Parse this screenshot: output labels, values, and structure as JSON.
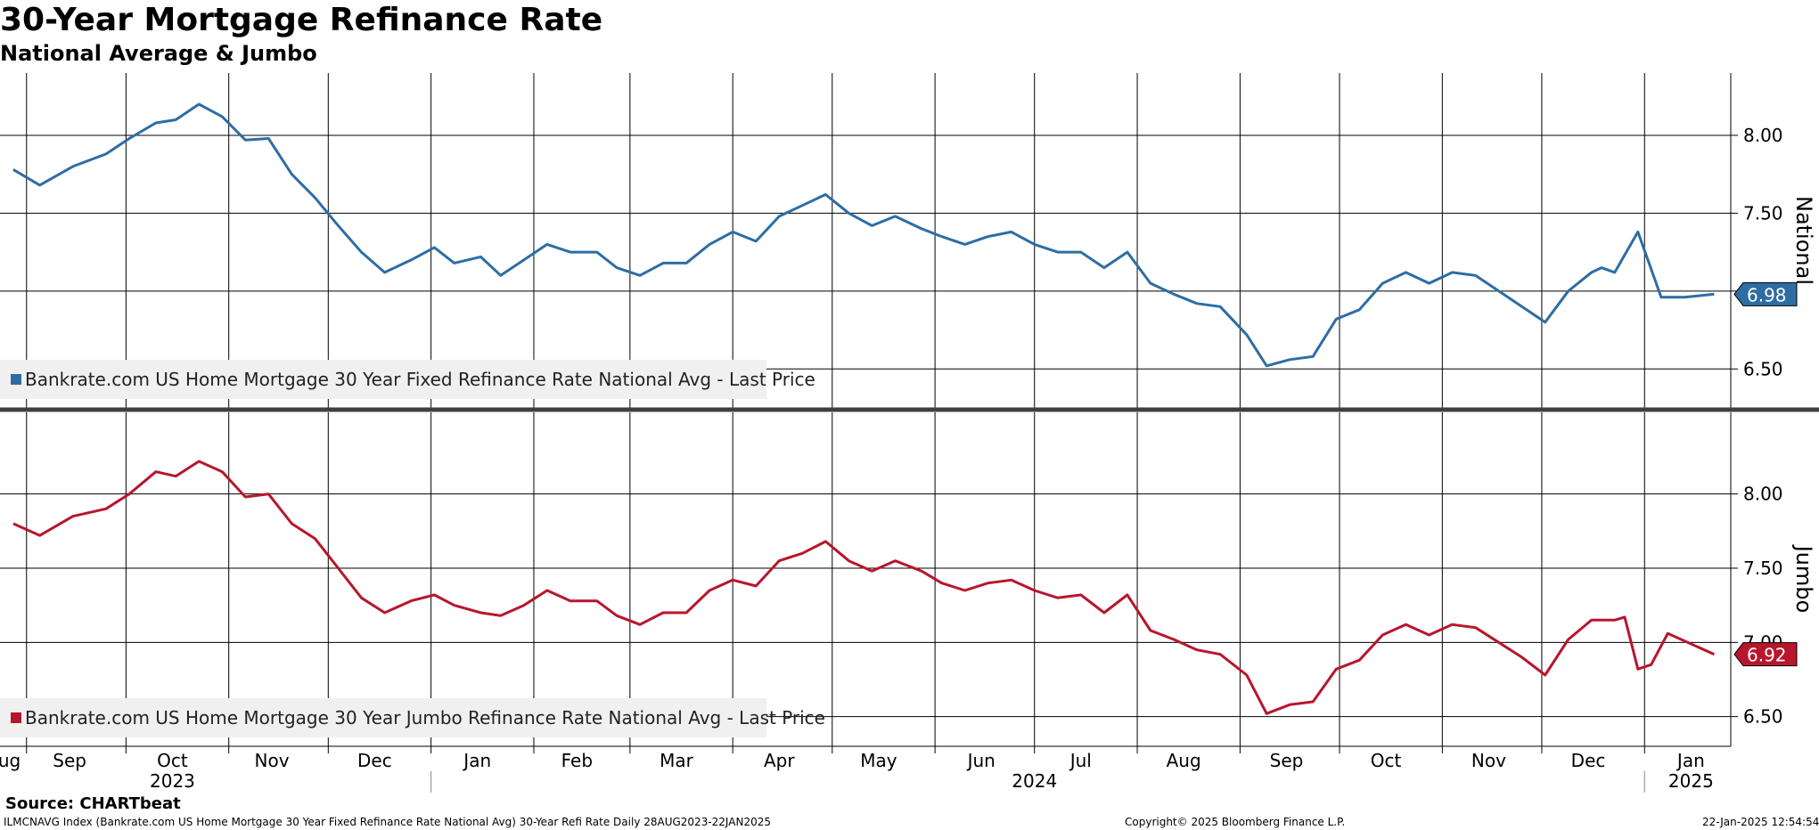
{
  "header": {
    "title": "30-Year Mortgage Refinance Rate",
    "subtitle": "National Average & Jumbo"
  },
  "footer": {
    "source": "Source: CHARTbeat",
    "description": "ILMCNAVG Index (Bankrate.com US Home Mortgage 30 Year Fixed Refinance Rate National Avg) 30-Year Refi Rate  Daily 28AUG2023-22JAN2025",
    "copyright": "Copyright© 2025 Bloomberg Finance L.P.",
    "timestamp": "22-Jan-2025 12:54:54"
  },
  "chart_data": [
    {
      "type": "line",
      "panel": "National",
      "color": "#2e6da4",
      "legend": "Bankrate.com US Home Mortgage 30 Year Fixed Refinance Rate National Avg - Last Price",
      "axis_label": "National",
      "last_value_label": "6.98",
      "ylim": [
        6.25,
        8.4
      ],
      "yticks": [
        "6.50",
        "7.00",
        "7.50",
        "8.00"
      ],
      "x": [
        "2023-08-28",
        "2023-09-05",
        "2023-09-15",
        "2023-09-25",
        "2023-10-02",
        "2023-10-10",
        "2023-10-16",
        "2023-10-23",
        "2023-10-30",
        "2023-11-06",
        "2023-11-13",
        "2023-11-20",
        "2023-11-27",
        "2023-12-04",
        "2023-12-11",
        "2023-12-18",
        "2023-12-26",
        "2024-01-02",
        "2024-01-08",
        "2024-01-16",
        "2024-01-22",
        "2024-01-29",
        "2024-02-05",
        "2024-02-12",
        "2024-02-20",
        "2024-02-26",
        "2024-03-04",
        "2024-03-11",
        "2024-03-18",
        "2024-03-25",
        "2024-04-01",
        "2024-04-08",
        "2024-04-15",
        "2024-04-22",
        "2024-04-29",
        "2024-05-06",
        "2024-05-13",
        "2024-05-20",
        "2024-05-28",
        "2024-06-03",
        "2024-06-10",
        "2024-06-17",
        "2024-06-24",
        "2024-07-01",
        "2024-07-08",
        "2024-07-15",
        "2024-07-22",
        "2024-07-29",
        "2024-08-05",
        "2024-08-12",
        "2024-08-19",
        "2024-08-26",
        "2024-09-03",
        "2024-09-09",
        "2024-09-16",
        "2024-09-23",
        "2024-09-30",
        "2024-10-07",
        "2024-10-14",
        "2024-10-21",
        "2024-10-28",
        "2024-11-04",
        "2024-11-11",
        "2024-11-18",
        "2024-11-25",
        "2024-12-02",
        "2024-12-09",
        "2024-12-16",
        "2024-12-19",
        "2024-12-23",
        "2024-12-30",
        "2025-01-06",
        "2025-01-13",
        "2025-01-22"
      ],
      "values": [
        7.78,
        7.68,
        7.8,
        7.88,
        7.98,
        8.08,
        8.1,
        8.2,
        8.12,
        7.97,
        7.98,
        7.75,
        7.6,
        7.42,
        7.25,
        7.12,
        7.2,
        7.28,
        7.18,
        7.22,
        7.1,
        7.2,
        7.3,
        7.25,
        7.25,
        7.15,
        7.1,
        7.18,
        7.18,
        7.3,
        7.38,
        7.32,
        7.48,
        7.55,
        7.62,
        7.5,
        7.42,
        7.48,
        7.4,
        7.35,
        7.3,
        7.35,
        7.38,
        7.3,
        7.25,
        7.25,
        7.15,
        7.25,
        7.05,
        6.98,
        6.92,
        6.9,
        6.72,
        6.52,
        6.56,
        6.58,
        6.82,
        6.88,
        7.05,
        7.12,
        7.05,
        7.12,
        7.1,
        7.0,
        6.9,
        6.8,
        7.0,
        7.12,
        7.15,
        7.12,
        7.38,
        6.96,
        6.96,
        6.98
      ]
    },
    {
      "type": "line",
      "panel": "Jumbo",
      "color": "#b8162d",
      "legend": "Bankrate.com US Home Mortgage 30 Year Jumbo Refinance Rate National Avg - Last Price",
      "axis_label": "Jumbo",
      "last_value_label": "6.92",
      "ylim": [
        6.3,
        8.55
      ],
      "yticks": [
        "6.50",
        "7.00",
        "7.50",
        "8.00"
      ],
      "x": [
        "2023-08-28",
        "2023-09-05",
        "2023-09-15",
        "2023-09-25",
        "2023-10-02",
        "2023-10-10",
        "2023-10-16",
        "2023-10-23",
        "2023-10-30",
        "2023-11-06",
        "2023-11-13",
        "2023-11-20",
        "2023-11-27",
        "2023-12-04",
        "2023-12-11",
        "2023-12-18",
        "2023-12-26",
        "2024-01-02",
        "2024-01-08",
        "2024-01-16",
        "2024-01-22",
        "2024-01-29",
        "2024-02-05",
        "2024-02-12",
        "2024-02-20",
        "2024-02-26",
        "2024-03-04",
        "2024-03-11",
        "2024-03-18",
        "2024-03-25",
        "2024-04-01",
        "2024-04-08",
        "2024-04-15",
        "2024-04-22",
        "2024-04-29",
        "2024-05-06",
        "2024-05-13",
        "2024-05-20",
        "2024-05-28",
        "2024-06-03",
        "2024-06-10",
        "2024-06-17",
        "2024-06-24",
        "2024-07-01",
        "2024-07-08",
        "2024-07-15",
        "2024-07-22",
        "2024-07-29",
        "2024-08-05",
        "2024-08-12",
        "2024-08-19",
        "2024-08-26",
        "2024-09-03",
        "2024-09-09",
        "2024-09-16",
        "2024-09-23",
        "2024-09-30",
        "2024-10-07",
        "2024-10-14",
        "2024-10-21",
        "2024-10-28",
        "2024-11-04",
        "2024-11-11",
        "2024-11-18",
        "2024-11-25",
        "2024-12-02",
        "2024-12-09",
        "2024-12-16",
        "2024-12-23",
        "2024-12-26",
        "2024-12-30",
        "2025-01-03",
        "2025-01-08",
        "2025-01-22"
      ],
      "values": [
        7.8,
        7.72,
        7.85,
        7.9,
        8.0,
        8.15,
        8.12,
        8.22,
        8.15,
        7.98,
        8.0,
        7.8,
        7.7,
        7.5,
        7.3,
        7.2,
        7.28,
        7.32,
        7.25,
        7.2,
        7.18,
        7.25,
        7.35,
        7.28,
        7.28,
        7.18,
        7.12,
        7.2,
        7.2,
        7.35,
        7.42,
        7.38,
        7.55,
        7.6,
        7.68,
        7.55,
        7.48,
        7.55,
        7.48,
        7.4,
        7.35,
        7.4,
        7.42,
        7.35,
        7.3,
        7.32,
        7.2,
        7.32,
        7.08,
        7.02,
        6.95,
        6.92,
        6.78,
        6.52,
        6.58,
        6.6,
        6.82,
        6.88,
        7.05,
        7.12,
        7.05,
        7.12,
        7.1,
        7.0,
        6.9,
        6.78,
        7.02,
        7.15,
        7.15,
        7.17,
        6.82,
        6.85,
        7.06,
        6.92
      ]
    }
  ],
  "x_axis": {
    "months": [
      {
        "label": "Aug",
        "date": "2023-08-25"
      },
      {
        "label": "Sep",
        "date": "2023-09-14"
      },
      {
        "label": "Oct",
        "date": "2023-10-15"
      },
      {
        "label": "Nov",
        "date": "2023-11-14"
      },
      {
        "label": "Dec",
        "date": "2023-12-15"
      },
      {
        "label": "Jan",
        "date": "2024-01-15"
      },
      {
        "label": "Feb",
        "date": "2024-02-14"
      },
      {
        "label": "Mar",
        "date": "2024-03-15"
      },
      {
        "label": "Apr",
        "date": "2024-04-15"
      },
      {
        "label": "May",
        "date": "2024-05-15"
      },
      {
        "label": "Jun",
        "date": "2024-06-15"
      },
      {
        "label": "Jul",
        "date": "2024-07-15"
      },
      {
        "label": "Aug",
        "date": "2024-08-15"
      },
      {
        "label": "Sep",
        "date": "2024-09-15"
      },
      {
        "label": "Oct",
        "date": "2024-10-15"
      },
      {
        "label": "Nov",
        "date": "2024-11-15"
      },
      {
        "label": "Dec",
        "date": "2024-12-15"
      },
      {
        "label": "Jan",
        "date": "2025-01-15"
      }
    ],
    "gridlines": [
      "2023-09-01",
      "2023-10-01",
      "2023-11-01",
      "2023-12-01",
      "2024-01-01",
      "2024-02-01",
      "2024-03-01",
      "2024-04-01",
      "2024-05-01",
      "2024-06-01",
      "2024-07-01",
      "2024-08-01",
      "2024-09-01",
      "2024-10-01",
      "2024-11-01",
      "2024-12-01",
      "2025-01-01"
    ],
    "years": [
      {
        "label": "2023",
        "date": "2023-10-15"
      },
      {
        "label": "2024",
        "date": "2024-07-01"
      },
      {
        "label": "2025",
        "date": "2025-01-15"
      }
    ],
    "xlim": [
      "2023-08-24",
      "2025-01-27"
    ]
  }
}
